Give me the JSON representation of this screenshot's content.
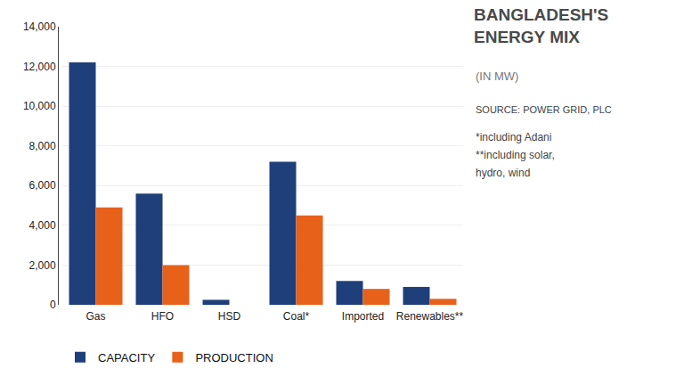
{
  "chart_data": {
    "type": "bar",
    "title": "BANGLADESH'S\nENERGY MIX",
    "subtitle": "(IN MW)",
    "categories": [
      "Gas",
      "HFO",
      "HSD",
      "Coal*",
      "Imported",
      "Renewables**"
    ],
    "series": [
      {
        "name": "CAPACITY",
        "color": "#1f3f7a",
        "values": [
          12200,
          5600,
          250,
          7200,
          1200,
          900
        ]
      },
      {
        "name": "PRODUCTION",
        "color": "#e8611a",
        "values": [
          4900,
          2000,
          0,
          4500,
          800,
          300
        ]
      }
    ],
    "ylim": [
      0,
      14000
    ],
    "yticks": [
      0,
      {
        "value": 2000,
        "label": "2,000"
      },
      {
        "value": 4000,
        "label": "4,000"
      },
      {
        "value": 6000,
        "label": "6,000"
      },
      {
        "value": 8000,
        "label": "8,000"
      },
      {
        "value": 10000,
        "label": "10,000"
      },
      {
        "value": 12000,
        "label": "12,000"
      },
      {
        "value": 14000,
        "label": "14,000"
      }
    ],
    "grid": true,
    "legend": "bottom",
    "annotations": [
      "SOURCE: POWER GRID, PLC",
      "*including Adani",
      "**including solar,",
      "hydro, wind"
    ]
  }
}
